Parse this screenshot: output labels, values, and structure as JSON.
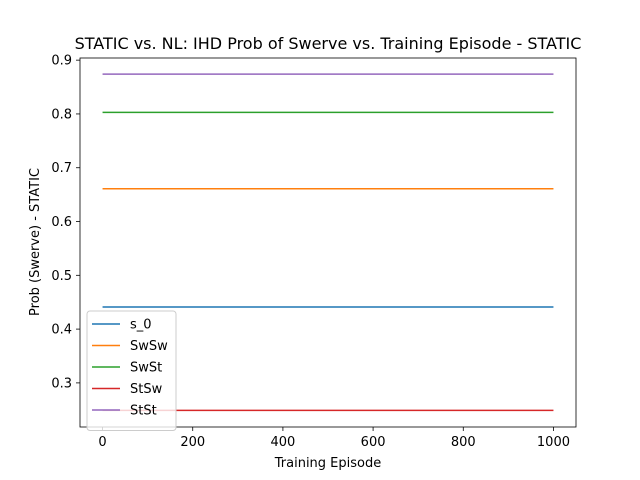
{
  "chart_data": {
    "type": "line",
    "title": "STATIC vs. NL: IHD Prob of Swerve vs. Training Episode - STATIC",
    "xlabel": "Training Episode",
    "ylabel": "Prob (Swerve) - STATIC",
    "xlim": [
      -50,
      1050
    ],
    "ylim": [
      0.218,
      0.904
    ],
    "xticks": [
      0,
      200,
      400,
      600,
      800,
      1000
    ],
    "yticks": [
      0.3,
      0.4,
      0.5,
      0.6,
      0.7,
      0.8,
      0.9
    ],
    "xtick_labels": [
      "0",
      "200",
      "400",
      "600",
      "800",
      "1000"
    ],
    "ytick_labels": [
      "0.3",
      "0.4",
      "0.5",
      "0.6",
      "0.7",
      "0.8",
      "0.9"
    ],
    "grid": false,
    "legend_position": "lower-left",
    "series": [
      {
        "name": "s_0",
        "color": "#1f77b4",
        "x": [
          0,
          1000
        ],
        "y": [
          0.441,
          0.441
        ]
      },
      {
        "name": "SwSw",
        "color": "#ff7f0e",
        "x": [
          0,
          1000
        ],
        "y": [
          0.661,
          0.661
        ]
      },
      {
        "name": "SwSt",
        "color": "#2ca02c",
        "x": [
          0,
          1000
        ],
        "y": [
          0.803,
          0.803
        ]
      },
      {
        "name": "StSw",
        "color": "#d62728",
        "x": [
          0,
          1000
        ],
        "y": [
          0.249,
          0.249
        ]
      },
      {
        "name": "StSt",
        "color": "#9467bd",
        "x": [
          0,
          1000
        ],
        "y": [
          0.874,
          0.874
        ]
      }
    ]
  }
}
